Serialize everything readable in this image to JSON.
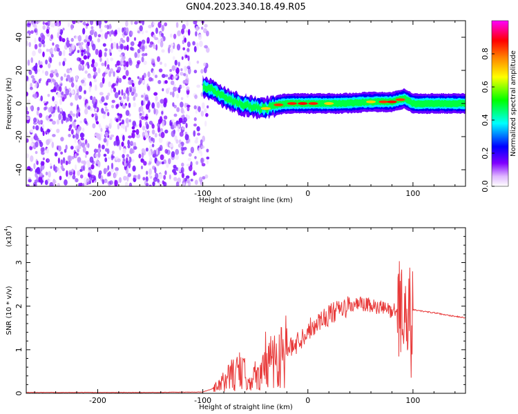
{
  "title": "GN04.2023.340.18.49.R05",
  "chart_data": [
    {
      "type": "heatmap",
      "xlabel": "Height of straight line (km)",
      "ylabel": "Frequency (Hz)",
      "xlim": [
        -268,
        150
      ],
      "ylim": [
        -50,
        50
      ],
      "xticks": [
        -200,
        -100,
        0,
        100
      ],
      "yticks": [
        -40,
        -20,
        0,
        20,
        40
      ],
      "colorbar": {
        "label": "Normalized spectral amplitude",
        "range": [
          0,
          1
        ],
        "ticks": [
          "0.0",
          "0.2",
          "0.4",
          "0.6",
          "0.8"
        ],
        "colors": [
          "#ffffff",
          "#e0b8ff",
          "#8000ff",
          "#0000ff",
          "#00ffff",
          "#00ff00",
          "#ffff00",
          "#ff8000",
          "#ff0000",
          "#ff00ff"
        ]
      },
      "regions": [
        {
          "name": "noise",
          "x_range": [
            -268,
            -95
          ],
          "freq_range": [
            -50,
            50
          ],
          "amplitude": "low (violet)"
        },
        {
          "name": "signal band",
          "x_range": [
            -95,
            150
          ],
          "freq_range": [
            -5,
            5
          ],
          "amplitude": "high (cyan to red)"
        }
      ],
      "signal_centerline": [
        {
          "x": -100,
          "f": 10
        },
        {
          "x": -90,
          "f": 8
        },
        {
          "x": -80,
          "f": 4
        },
        {
          "x": -70,
          "f": 1
        },
        {
          "x": -60,
          "f": -1
        },
        {
          "x": -50,
          "f": -2
        },
        {
          "x": -40,
          "f": -3
        },
        {
          "x": -30,
          "f": -1
        },
        {
          "x": -20,
          "f": 0
        },
        {
          "x": 0,
          "f": 0
        },
        {
          "x": 30,
          "f": 0
        },
        {
          "x": 60,
          "f": 1
        },
        {
          "x": 80,
          "f": 1
        },
        {
          "x": 92,
          "f": 3
        },
        {
          "x": 100,
          "f": 0
        },
        {
          "x": 150,
          "f": 0
        }
      ]
    },
    {
      "type": "line",
      "xlabel": "Height of straight line (km)",
      "ylabel": "SNR (10 * v/v)",
      "yscale_label": "(x10",
      "yscale_exponent": "4",
      "xlim": [
        -268,
        150
      ],
      "ylim": [
        0,
        3.8
      ],
      "xticks": [
        -200,
        -100,
        0,
        100
      ],
      "yticks": [
        0,
        1,
        2,
        3
      ],
      "series": [
        {
          "color": "#e83a3a",
          "x": [
            -268,
            -150,
            -100,
            -85,
            -75,
            -65,
            -55,
            -45,
            -35,
            -25,
            -15,
            -5,
            0,
            10,
            20,
            30,
            40,
            50,
            60,
            70,
            80,
            90,
            95,
            98,
            100,
            110,
            120,
            130,
            140,
            150
          ],
          "y": [
            0.02,
            0.02,
            0.03,
            0.15,
            0.4,
            0.5,
            0.35,
            0.45,
            0.8,
            0.95,
            1.05,
            1.3,
            1.45,
            1.65,
            1.8,
            1.9,
            2.0,
            2.05,
            2.0,
            1.95,
            1.9,
            1.95,
            1.5,
            1.2,
            1.92,
            1.88,
            1.85,
            1.8,
            1.77,
            1.73
          ]
        }
      ]
    }
  ]
}
